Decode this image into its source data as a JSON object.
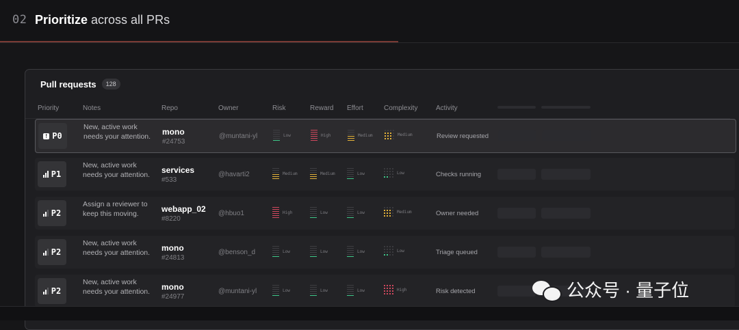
{
  "header": {
    "step": "02",
    "title_bold": "Prioritize",
    "title_rest": " across all PRs"
  },
  "panel": {
    "title": "Pull requests",
    "count": "128"
  },
  "columns": [
    "Priority",
    "Notes",
    "Repo",
    "Owner",
    "Risk",
    "Reward",
    "Effort",
    "Complexity",
    "Activity"
  ],
  "rows": [
    {
      "priority": "P0",
      "priority_icon": "alert-icon",
      "notes": "New, active work needs your attention.",
      "repo": "mono",
      "pr": "#24753",
      "owner": "@muntani-yl",
      "risk": "Low",
      "reward": "High",
      "effort": "Medium",
      "complexity": "Medium",
      "activity": "Review requested",
      "selected": true
    },
    {
      "priority": "P1",
      "priority_icon": "signal-high-icon",
      "notes": "New, active work needs your attention.",
      "repo": "services",
      "pr": "#533",
      "owner": "@havarti2",
      "risk": "Medium",
      "reward": "Medium",
      "effort": "Low",
      "complexity": "Low",
      "activity": "Checks running"
    },
    {
      "priority": "P2",
      "priority_icon": "signal-medium-icon",
      "notes": "Assign a reviewer to keep this moving.",
      "repo": "webapp_02",
      "pr": "#8220",
      "owner": "@hbuo1",
      "risk": "High",
      "reward": "Low",
      "effort": "Low",
      "complexity": "Medium",
      "activity": "Owner needed"
    },
    {
      "priority": "P2",
      "priority_icon": "signal-medium-icon",
      "notes": "New, active work needs your attention.",
      "repo": "mono",
      "pr": "#24813",
      "owner": "@benson_d",
      "risk": "Low",
      "reward": "Low",
      "effort": "Low",
      "complexity": "Low",
      "activity": "Triage queued"
    },
    {
      "priority": "P2",
      "priority_icon": "signal-medium-icon",
      "notes": "New, active work needs your attention.",
      "repo": "mono",
      "pr": "#24977",
      "owner": "@muntani-yl",
      "risk": "Low",
      "reward": "Low",
      "effort": "Low",
      "complexity": "High",
      "activity": "Risk detected"
    }
  ],
  "watermark": {
    "text": "公众号 · 量子位",
    "icon": "wechat-icon"
  },
  "colors": {
    "high": "#d1485e",
    "medium": "#e6b43a",
    "low": "#3ec98a",
    "accent_line": "#7a3b35"
  }
}
